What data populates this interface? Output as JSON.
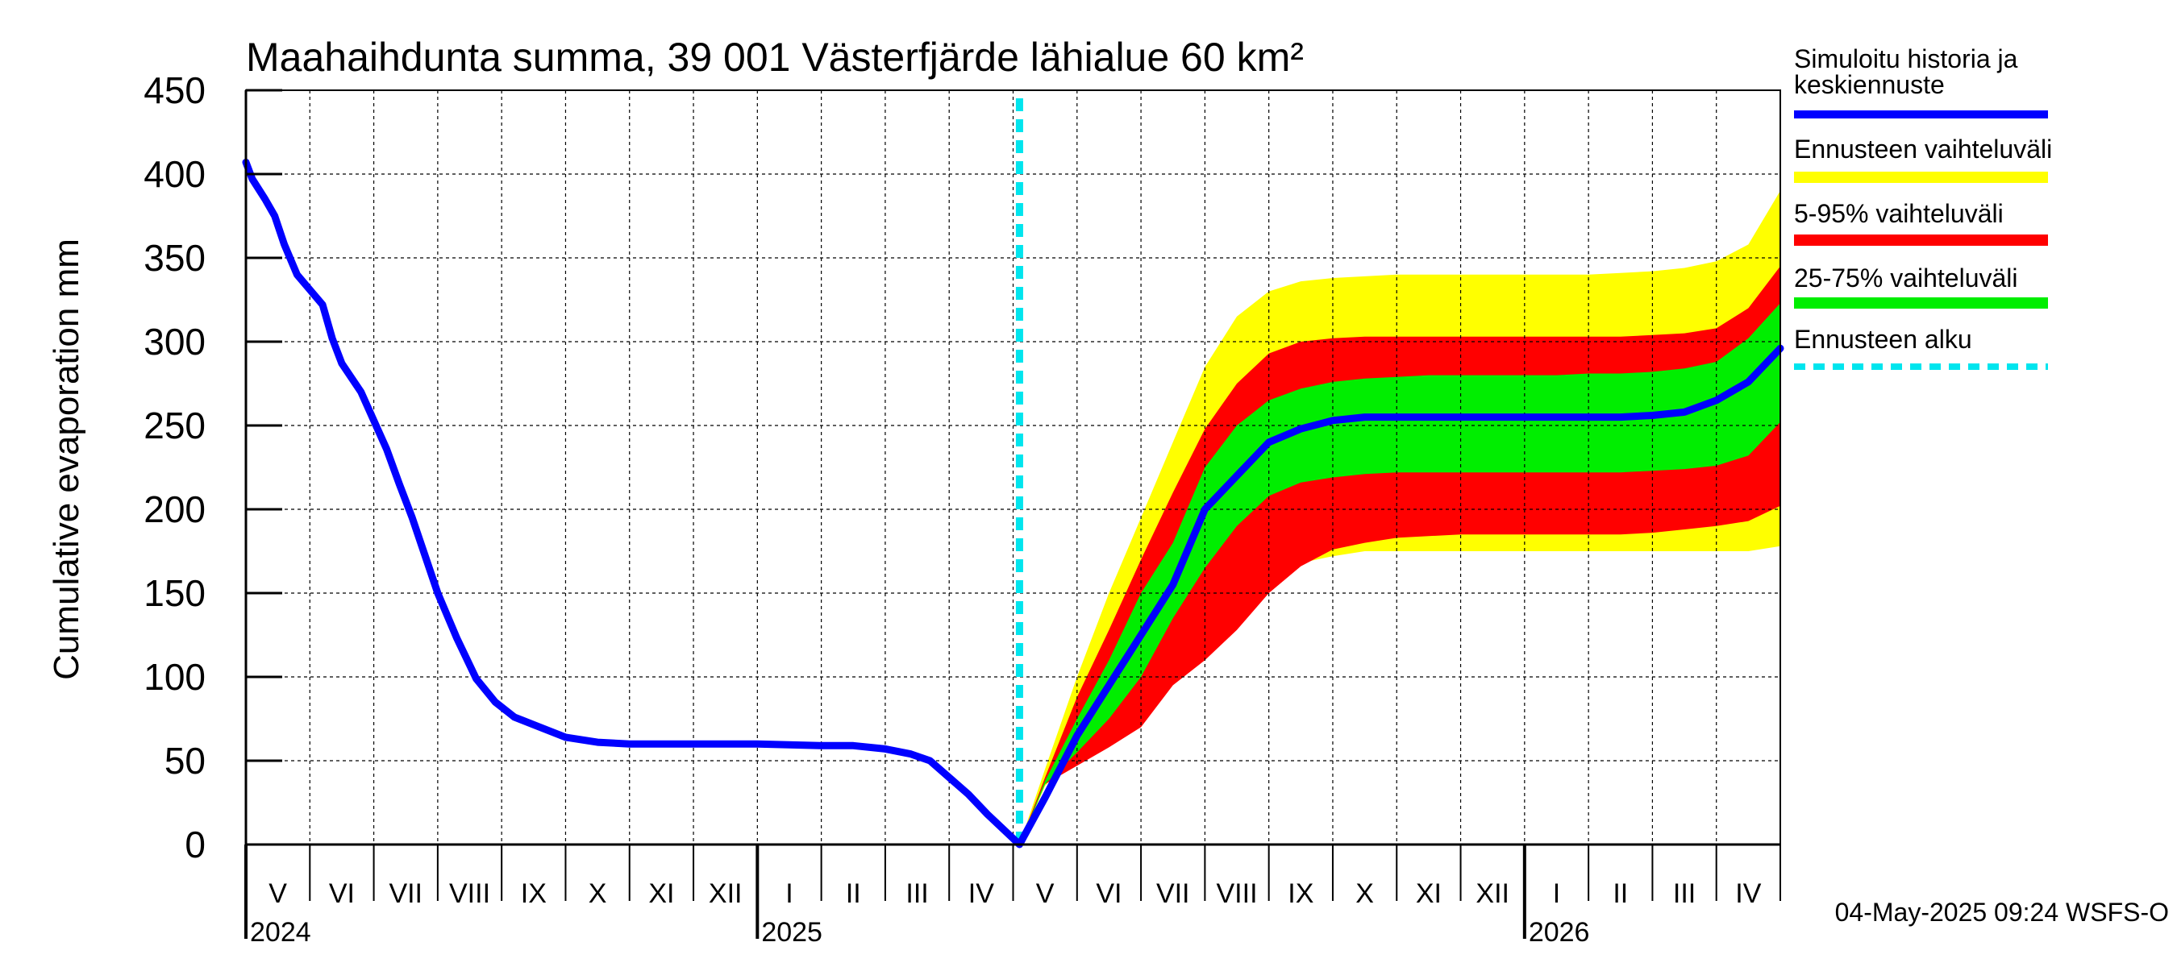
{
  "chart_data": {
    "type": "area",
    "title": "Maahaihdunta summa, 39 001 Västerfjärde lähialue 60 km²",
    "ylabel": "Cumulative evaporation   mm",
    "xlabel": "",
    "ylim": [
      0,
      450
    ],
    "yticks": [
      0,
      50,
      100,
      150,
      200,
      250,
      300,
      350,
      400,
      450
    ],
    "xlim": [
      0,
      24
    ],
    "month_labels": [
      {
        "label": "V",
        "x": 0.5
      },
      {
        "label": "VI",
        "x": 1.5
      },
      {
        "label": "VII",
        "x": 2.5
      },
      {
        "label": "VIII",
        "x": 3.5
      },
      {
        "label": "IX",
        "x": 4.5
      },
      {
        "label": "X",
        "x": 5.5
      },
      {
        "label": "XI",
        "x": 6.5
      },
      {
        "label": "XII",
        "x": 7.5
      },
      {
        "label": "I",
        "x": 8.5
      },
      {
        "label": "II",
        "x": 9.5
      },
      {
        "label": "III",
        "x": 10.5
      },
      {
        "label": "IV",
        "x": 11.5
      },
      {
        "label": "V",
        "x": 12.5
      },
      {
        "label": "VI",
        "x": 13.5
      },
      {
        "label": "VII",
        "x": 14.5
      },
      {
        "label": "VIII",
        "x": 15.5
      },
      {
        "label": "IX",
        "x": 16.5
      },
      {
        "label": "X",
        "x": 17.5
      },
      {
        "label": "XI",
        "x": 18.5
      },
      {
        "label": "XII",
        "x": 19.5
      },
      {
        "label": "I",
        "x": 20.5
      },
      {
        "label": "II",
        "x": 21.5
      },
      {
        "label": "III",
        "x": 22.5
      },
      {
        "label": "IV",
        "x": 23.5
      }
    ],
    "year_labels": [
      {
        "label": "2024",
        "x": 0
      },
      {
        "label": "2025",
        "x": 8
      },
      {
        "label": "2026",
        "x": 20
      }
    ],
    "forecast_start_x": 12.1,
    "x": [
      12.1,
      12.5,
      13,
      13.5,
      14,
      14.5,
      15,
      15.5,
      16,
      16.5,
      17,
      17.5,
      18,
      18.5,
      19,
      19.5,
      20,
      20.5,
      21,
      21.5,
      22,
      22.5,
      23,
      23.5,
      24
    ],
    "series": [
      {
        "name": "Simuloitu historia ja keskiennuste",
        "color": "#0000ff",
        "history": {
          "x": [
            0,
            0.1,
            0.3,
            0.45,
            0.6,
            0.8,
            1.2,
            1.35,
            1.5,
            1.8,
            2.2,
            2.4,
            2.6,
            3.0,
            3.3,
            3.6,
            3.9,
            4.2,
            4.6,
            5.0,
            5.5,
            6.0,
            6.5,
            7.0,
            8.0,
            9.0,
            9.5,
            10.0,
            10.4,
            10.7,
            11.0,
            11.3,
            11.6,
            12.1
          ],
          "values": [
            407,
            397,
            385,
            375,
            358,
            340,
            322,
            302,
            287,
            270,
            236,
            215,
            195,
            150,
            123,
            99,
            85,
            76,
            70,
            64,
            61,
            60,
            60,
            60,
            60,
            59,
            59,
            57,
            54,
            50,
            40,
            30,
            18,
            0
          ]
        },
        "values": [
          0,
          28,
          65,
          95,
          125,
          155,
          200,
          220,
          240,
          248,
          253,
          255,
          255,
          255,
          255,
          255,
          255,
          255,
          255,
          255,
          256,
          258,
          265,
          276,
          296
        ]
      },
      {
        "name": "Ennusteen vaihteluväli",
        "color": "#ffff00",
        "low": [
          0,
          35,
          55,
          62,
          80,
          105,
          120,
          140,
          158,
          168,
          172,
          175,
          175,
          175,
          175,
          175,
          175,
          175,
          175,
          175,
          175,
          175,
          175,
          175,
          178
        ],
        "high": [
          0,
          45,
          100,
          150,
          195,
          240,
          285,
          315,
          330,
          336,
          338,
          339,
          340,
          340,
          340,
          340,
          340,
          340,
          340,
          341,
          342,
          344,
          348,
          358,
          390
        ]
      },
      {
        "name": "5-95% vaihteluväli",
        "color": "#ff0000",
        "low": [
          0,
          36,
          47,
          58,
          70,
          95,
          110,
          128,
          150,
          166,
          176,
          180,
          183,
          184,
          185,
          185,
          185,
          185,
          185,
          185,
          186,
          188,
          190,
          193,
          202
        ],
        "high": [
          0,
          40,
          88,
          128,
          170,
          210,
          248,
          275,
          293,
          300,
          302,
          303,
          303,
          303,
          303,
          303,
          303,
          303,
          303,
          303,
          304,
          305,
          308,
          320,
          345
        ]
      },
      {
        "name": "25-75% vaihteluväli",
        "color": "#00ee00",
        "low": [
          0,
          36,
          55,
          75,
          100,
          135,
          165,
          190,
          208,
          216,
          219,
          221,
          222,
          222,
          222,
          222,
          222,
          222,
          222,
          222,
          223,
          224,
          226,
          232,
          252
        ]
      },
      {
        "name": "Ennusteen alku",
        "color": "#00e5ee"
      }
    ],
    "range_25_75_high": [
      0,
      38,
      75,
      110,
      150,
      180,
      225,
      250,
      265,
      272,
      276,
      278,
      279,
      280,
      280,
      280,
      280,
      280,
      281,
      281,
      282,
      284,
      288,
      302,
      323
    ],
    "grid": true,
    "legend_position": "right"
  },
  "legend": [
    {
      "label": "Simuloitu historia ja\nkeskiennuste",
      "line1": "Simuloitu historia ja",
      "line2": "keskiennuste",
      "color": "#0000ff"
    },
    {
      "label": "Ennusteen vaihteluväli",
      "color": "#ffff00"
    },
    {
      "label": "5-95% vaihteluväli",
      "color": "#ff0000"
    },
    {
      "label": "25-75% vaihteluväli",
      "color": "#00ee00"
    },
    {
      "label": "Ennusteen alku",
      "color": "#00e5ee"
    }
  ],
  "footer": {
    "timestamp": "04-May-2025 09:24 WSFS-O"
  }
}
